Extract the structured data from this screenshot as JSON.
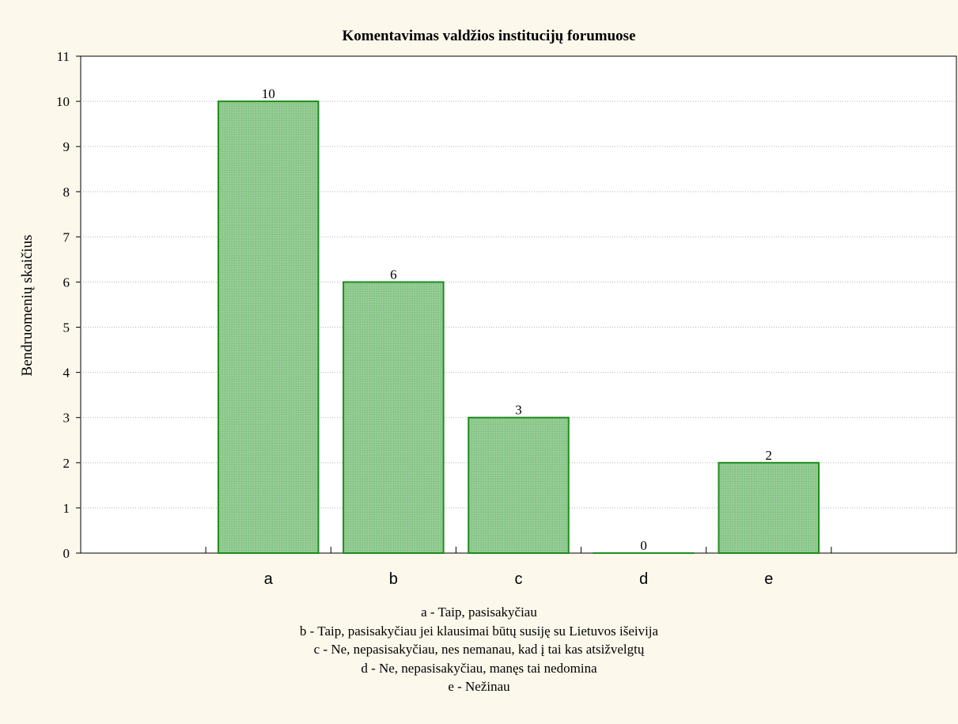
{
  "chart_data": {
    "type": "bar",
    "title": "Komentavimas valdžios institucijų forumuose",
    "ylabel": "Bendruomenių skaičius",
    "xlabel": "",
    "categories": [
      "a",
      "b",
      "c",
      "d",
      "e"
    ],
    "values": [
      10,
      6,
      3,
      0,
      2
    ],
    "data_labels": [
      "10",
      "6",
      "3",
      "0",
      "2"
    ],
    "ylim": [
      0,
      11
    ],
    "yticks": [
      0,
      1,
      2,
      3,
      4,
      5,
      6,
      7,
      8,
      9,
      10,
      11
    ],
    "x_slots": 7,
    "grid": true,
    "bar_color": "#8fc98f",
    "bar_edge_color": "#1e8c1e",
    "background_color": "#fdf8ec",
    "plot_background_color": "#ffffff",
    "legend_entries": [
      "a - Taip, pasisakyčiau",
      "b - Taip, pasisakyčiau jei klausimai būtų susiję su Lietuvos išeivija",
      "c - Ne, nepasisakyčiau, nes nemanau, kad į tai kas atsižvelgtų",
      "d - Ne, nepasisakyčiau, manęs tai nedomina",
      "e - Nežinau"
    ]
  }
}
